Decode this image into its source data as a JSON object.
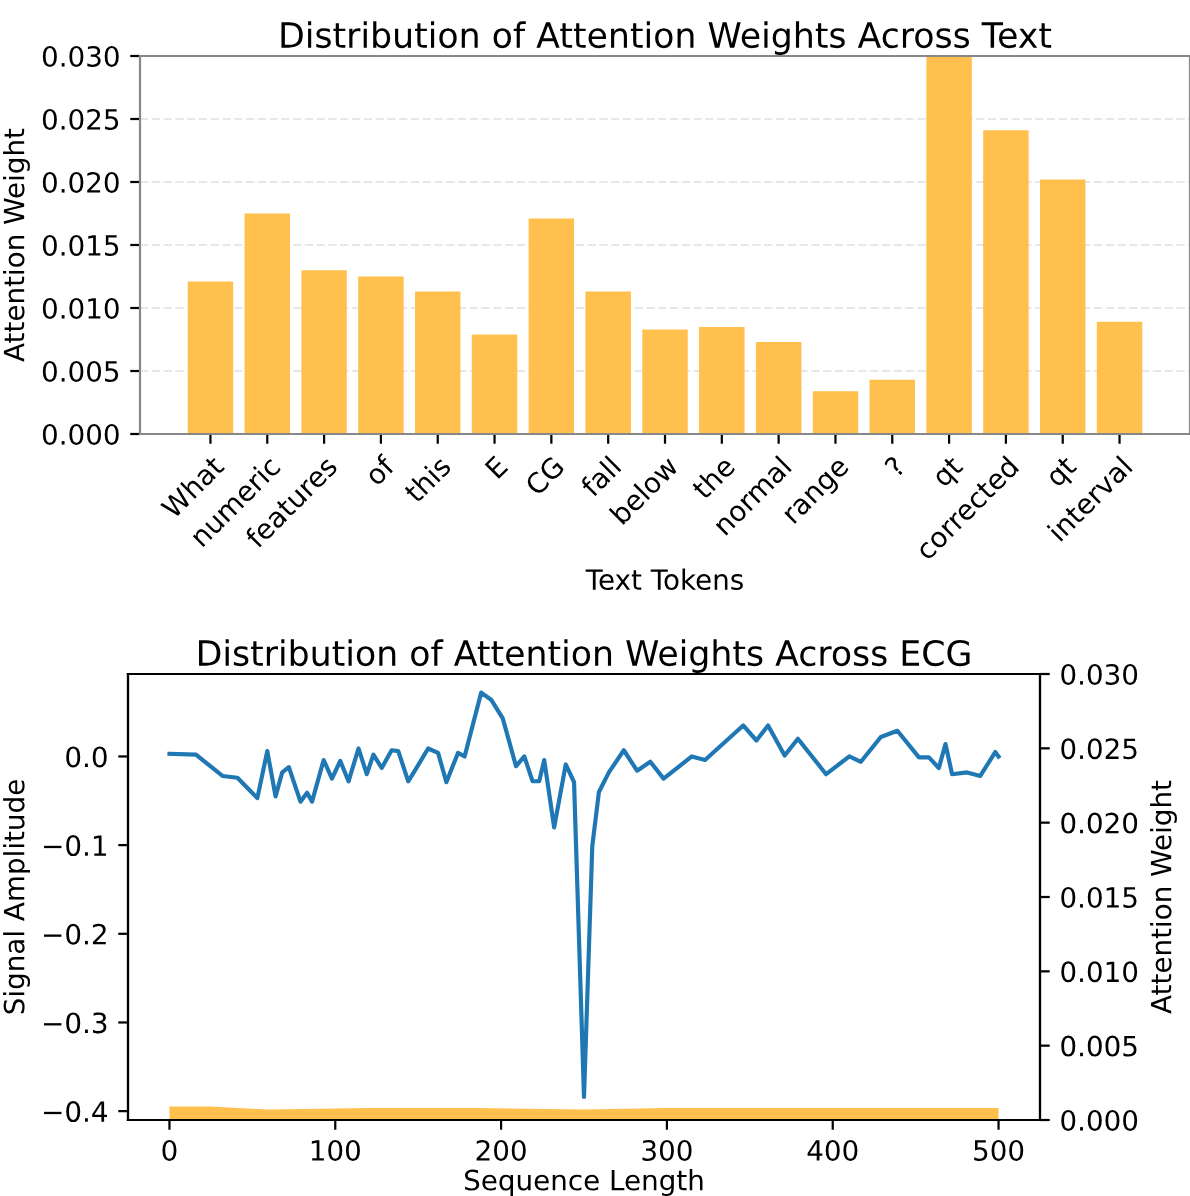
{
  "chart_data": [
    {
      "type": "bar",
      "title": "Distribution of Attention Weights Across Text",
      "xlabel": "Text Tokens",
      "ylabel": "Attention Weight",
      "categories": [
        "What",
        "numeric",
        "features",
        "of",
        "this",
        "E",
        "CG",
        "fall",
        "below",
        "the",
        "normal",
        "range",
        "?",
        "qt",
        "corrected",
        "qt",
        "interval"
      ],
      "values": [
        0.0121,
        0.0175,
        0.013,
        0.0125,
        0.0113,
        0.0079,
        0.0171,
        0.0113,
        0.0083,
        0.0085,
        0.0073,
        0.0034,
        0.0043,
        0.03,
        0.0241,
        0.0202,
        0.0089
      ],
      "color": "#ffc04d",
      "ylim": [
        0,
        0.03
      ],
      "yticks": [
        {
          "value": 0,
          "label": "0.000"
        },
        {
          "value": 0.005,
          "label": "0.005"
        },
        {
          "value": 0.01,
          "label": "0.010"
        },
        {
          "value": 0.015,
          "label": "0.015"
        },
        {
          "value": 0.02,
          "label": "0.020"
        },
        {
          "value": 0.025,
          "label": "0.025"
        },
        {
          "value": 0.03,
          "label": "0.030"
        }
      ],
      "grid": "y"
    },
    {
      "type": "line",
      "title": "Distribution of Attention Weights Across ECG",
      "xlabel": "Sequence Length",
      "ylabel": "Signal Amplitude",
      "y2label": "Attention Weight",
      "xlim": [
        -25,
        525
      ],
      "xticks": [
        0,
        100,
        200,
        300,
        400,
        500
      ],
      "ylim": [
        -0.41,
        0.093
      ],
      "yticks": [
        {
          "value": -0.4,
          "label": "−0.4"
        },
        {
          "value": -0.3,
          "label": "−0.3"
        },
        {
          "value": -0.2,
          "label": "−0.2"
        },
        {
          "value": -0.1,
          "label": "−0.1"
        },
        {
          "value": 0,
          "label": "0.0"
        }
      ],
      "y2lim": [
        0,
        0.03
      ],
      "y2ticks": [
        {
          "value": 0,
          "label": "0.000"
        },
        {
          "value": 0.005,
          "label": "0.005"
        },
        {
          "value": 0.01,
          "label": "0.010"
        },
        {
          "value": 0.015,
          "label": "0.015"
        },
        {
          "value": 0.02,
          "label": "0.020"
        },
        {
          "value": 0.025,
          "label": "0.025"
        },
        {
          "value": 0.03,
          "label": "0.030"
        }
      ],
      "grid": false,
      "series": [
        {
          "type": "line",
          "color": "#1f77b4",
          "x": [
            0,
            16,
            32,
            41,
            53,
            59,
            64,
            68,
            72,
            79,
            83,
            86,
            93,
            98,
            103,
            108,
            114,
            119,
            123,
            128,
            134,
            138,
            144,
            148,
            156,
            162,
            167,
            174,
            178,
            183,
            188,
            194,
            201,
            209,
            214,
            219,
            223,
            226,
            232,
            239,
            244,
            250,
            255,
            259,
            265,
            274,
            282,
            290,
            298,
            315,
            323,
            346,
            354,
            361,
            371,
            379,
            396,
            410,
            417,
            429,
            439,
            452,
            458,
            464,
            468,
            472,
            481,
            489,
            498,
            500
          ],
          "values": [
            0.003,
            0.002,
            -0.022,
            -0.024,
            -0.047,
            0.006,
            -0.045,
            -0.018,
            -0.012,
            -0.051,
            -0.041,
            -0.051,
            -0.004,
            -0.025,
            -0.005,
            -0.028,
            0.009,
            -0.02,
            0.002,
            -0.013,
            0.007,
            0.006,
            -0.028,
            -0.016,
            0.009,
            0.004,
            -0.029,
            0.004,
            0.0,
            0.036,
            0.072,
            0.064,
            0.043,
            -0.011,
            0.0,
            -0.028,
            -0.028,
            -0.004,
            -0.08,
            -0.009,
            -0.029,
            -0.384,
            -0.101,
            -0.04,
            -0.018,
            0.007,
            -0.016,
            -0.006,
            -0.025,
            0.0,
            -0.004,
            0.035,
            0.018,
            0.035,
            0.001,
            0.02,
            -0.02,
            0.0,
            -0.006,
            0.022,
            0.029,
            -0.001,
            -0.001,
            -0.013,
            0.014,
            -0.02,
            -0.018,
            -0.022,
            0.005,
            0.0
          ]
        },
        {
          "type": "area",
          "axis": "y2",
          "color": "#ffc04d",
          "x": [
            0,
            25,
            60,
            120,
            185,
            250,
            300,
            400,
            500
          ],
          "values": [
            0.0009,
            0.0009,
            0.0007,
            0.0008,
            0.0008,
            0.0007,
            0.0008,
            0.0008,
            0.0008
          ]
        }
      ]
    }
  ]
}
